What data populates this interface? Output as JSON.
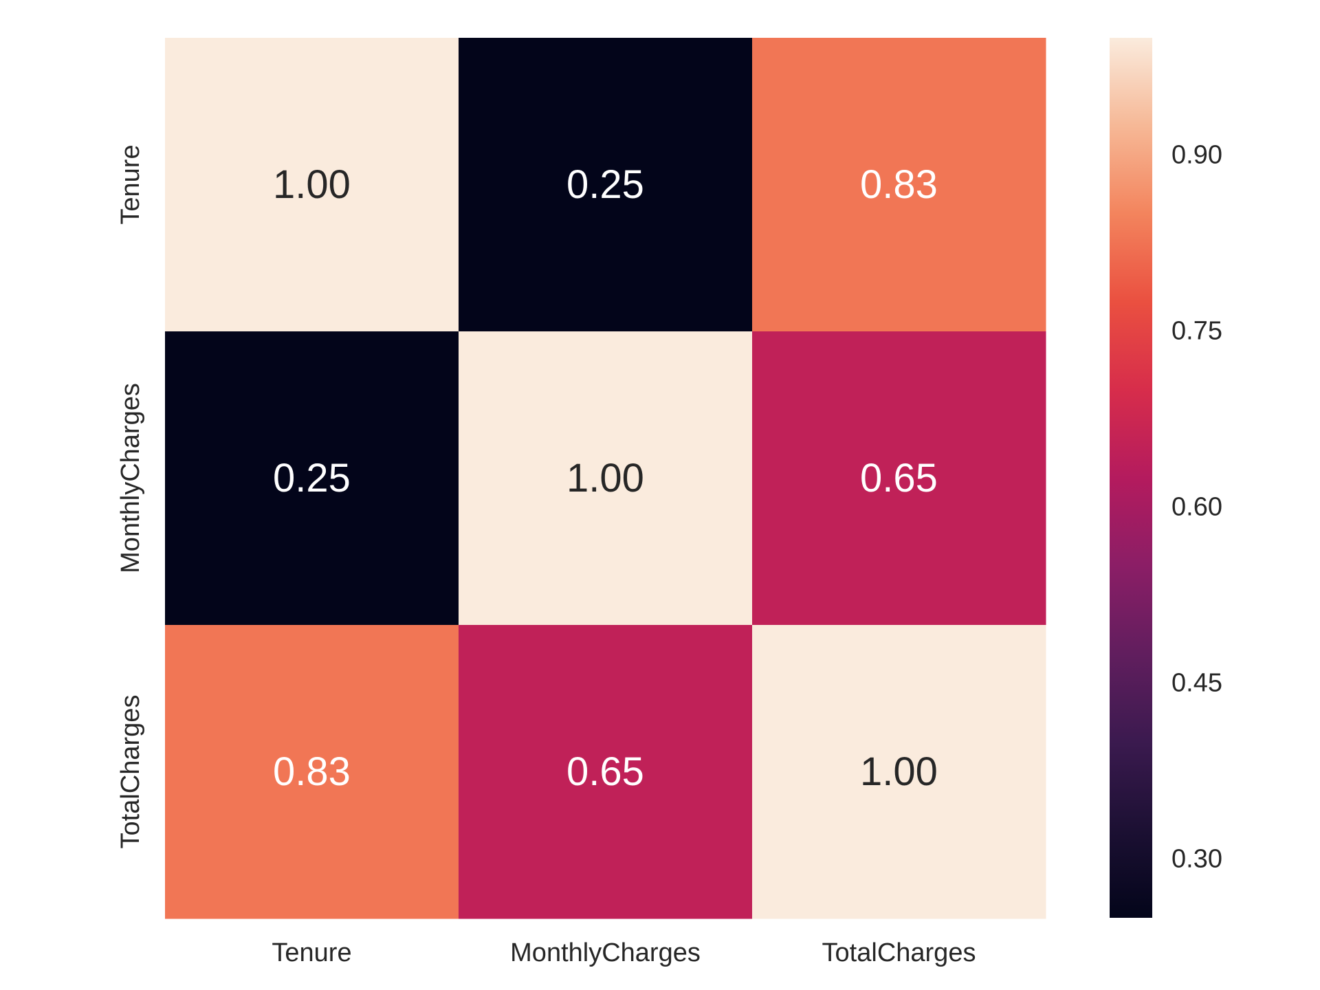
{
  "chart_data": {
    "type": "heatmap",
    "title": "",
    "xlabel": "",
    "ylabel": "",
    "x_categories": [
      "Tenure",
      "MonthlyCharges",
      "TotalCharges"
    ],
    "y_categories": [
      "Tenure",
      "MonthlyCharges",
      "TotalCharges"
    ],
    "values": [
      [
        1.0,
        0.25,
        0.83
      ],
      [
        0.25,
        1.0,
        0.65
      ],
      [
        0.83,
        0.65,
        1.0
      ]
    ],
    "value_format": "0.00",
    "colormap": "rocket",
    "colorbar": {
      "range": [
        0.25,
        1.0
      ],
      "ticks": [
        0.3,
        0.45,
        0.6,
        0.75,
        0.9
      ],
      "tick_labels": [
        "0.30",
        "0.45",
        "0.60",
        "0.75",
        "0.90"
      ]
    },
    "grid": false,
    "legend": "colorbar-right"
  }
}
